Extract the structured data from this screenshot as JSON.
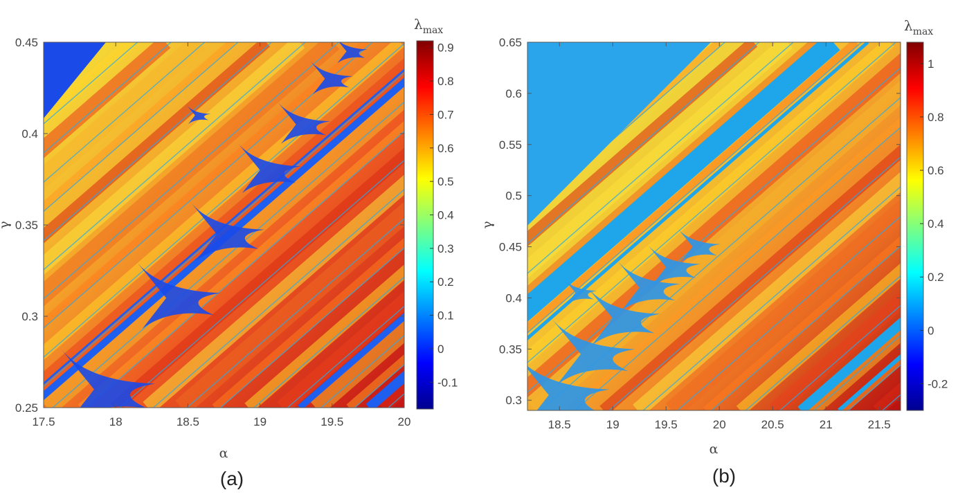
{
  "chart_data": [
    {
      "type": "heatmap",
      "panel_label": "(a)",
      "xlabel": "α",
      "ylabel": "γ",
      "xlim": [
        17.5,
        20
      ],
      "ylim": [
        0.25,
        0.45
      ],
      "x_ticks": [
        "17.5",
        "18",
        "18.5",
        "19",
        "19.5",
        "20"
      ],
      "x_tick_values": [
        17.5,
        18,
        18.5,
        19,
        19.5,
        20
      ],
      "y_ticks": [
        "0.25",
        "0.3",
        "0.35",
        "0.4",
        "0.45"
      ],
      "y_tick_values": [
        0.25,
        0.3,
        0.35,
        0.4,
        0.45
      ],
      "colorbar": {
        "title": "λ",
        "title_subscript": "max",
        "range": [
          -0.18,
          0.92
        ],
        "ticks": [
          "-0.1",
          "0",
          "0.1",
          "0.2",
          "0.3",
          "0.4",
          "0.5",
          "0.6",
          "0.7",
          "0.8",
          "0.9"
        ],
        "tick_values": [
          -0.1,
          0,
          0.1,
          0.2,
          0.3,
          0.4,
          0.5,
          0.6,
          0.7,
          0.8,
          0.9
        ]
      },
      "colormap": "jet",
      "periodic_window_vertices": [
        {
          "alpha": 17.85,
          "gamma": 0.26
        },
        {
          "alpha": 18.35,
          "gamma": 0.31
        },
        {
          "alpha": 18.7,
          "gamma": 0.345
        },
        {
          "alpha": 19.0,
          "gamma": 0.38
        },
        {
          "alpha": 19.25,
          "gamma": 0.405
        },
        {
          "alpha": 19.45,
          "gamma": 0.43
        },
        {
          "alpha": 19.6,
          "gamma": 0.445
        },
        {
          "alpha": 18.55,
          "gamma": 0.41
        }
      ]
    },
    {
      "type": "heatmap",
      "panel_label": "(b)",
      "xlabel": "α",
      "ylabel": "γ",
      "xlim": [
        18.2,
        21.7
      ],
      "ylim": [
        0.29,
        0.65
      ],
      "x_ticks": [
        "18.5",
        "19",
        "19.5",
        "20",
        "20.5",
        "21",
        "21.5"
      ],
      "x_tick_values": [
        18.5,
        19,
        19.5,
        20,
        20.5,
        21,
        21.5
      ],
      "y_ticks": [
        "0.3",
        "0.35",
        "0.4",
        "0.45",
        "0.5",
        "0.55",
        "0.6",
        "0.65"
      ],
      "y_tick_values": [
        0.3,
        0.35,
        0.4,
        0.45,
        0.5,
        0.55,
        0.6,
        0.65
      ],
      "colorbar": {
        "title": "λ",
        "title_subscript": "max",
        "range": [
          -0.3,
          1.08
        ],
        "ticks": [
          "-0.2",
          "0",
          "0.2",
          "0.4",
          "0.6",
          "0.8",
          "1"
        ],
        "tick_values": [
          -0.2,
          0,
          0.2,
          0.4,
          0.6,
          0.8,
          1.0
        ]
      },
      "colormap": "jet",
      "periodic_window_vertices": [
        {
          "alpha": 18.4,
          "gamma": 0.305
        },
        {
          "alpha": 18.7,
          "gamma": 0.345
        },
        {
          "alpha": 19.0,
          "gamma": 0.38
        },
        {
          "alpha": 19.25,
          "gamma": 0.41
        },
        {
          "alpha": 19.5,
          "gamma": 0.43
        },
        {
          "alpha": 19.75,
          "gamma": 0.45
        },
        {
          "alpha": 18.65,
          "gamma": 0.405
        }
      ]
    }
  ]
}
